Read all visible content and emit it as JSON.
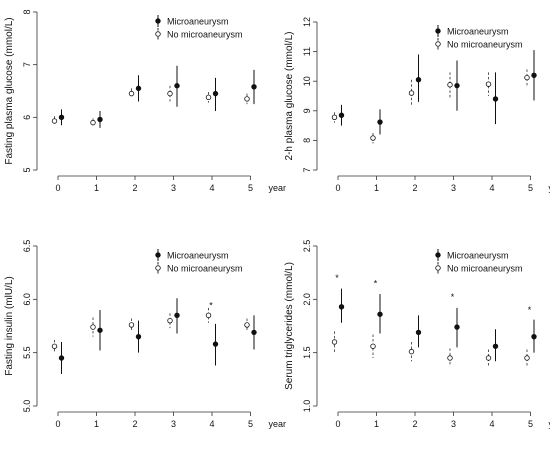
{
  "chart_data": [
    {
      "type": "scatter",
      "ylabel": "Fasting plasma glucose (mmol/L)",
      "xlabel": "year",
      "x_ticks": [
        "0",
        "1",
        "2",
        "3",
        "4",
        "5"
      ],
      "y_ticks": [
        "5",
        "6",
        "7",
        "8"
      ],
      "ylim": [
        5,
        8
      ],
      "legend_placement": "top-right",
      "series": [
        {
          "name": "Microaneurysm",
          "marker": "filled",
          "line": "solid",
          "values": [
            6.0,
            5.96,
            6.55,
            6.6,
            6.45,
            6.58
          ],
          "err_low": [
            5.85,
            5.8,
            6.3,
            6.2,
            6.12,
            6.25
          ],
          "err_high": [
            6.15,
            6.12,
            6.8,
            6.98,
            6.75,
            6.9
          ]
        },
        {
          "name": "No microaneurysm",
          "marker": "open",
          "line": "dashed",
          "values": [
            5.93,
            5.9,
            6.45,
            6.45,
            6.38,
            6.35
          ],
          "err_low": [
            5.85,
            5.82,
            6.38,
            6.3,
            6.28,
            6.25
          ],
          "err_high": [
            6.02,
            5.98,
            6.55,
            6.6,
            6.48,
            6.45
          ]
        }
      ],
      "significance_marks": []
    },
    {
      "type": "scatter",
      "ylabel": "2-h plasma glucose (mmol/L)",
      "xlabel": "year",
      "x_ticks": [
        "0",
        "1",
        "2",
        "3",
        "4",
        "5"
      ],
      "y_ticks": [
        "7",
        "8",
        "9",
        "10",
        "11",
        "12"
      ],
      "ylim": [
        7,
        12
      ],
      "legend_placement": "top-right",
      "series": [
        {
          "name": "Microaneurysm",
          "marker": "filled",
          "line": "solid",
          "values": [
            8.85,
            8.62,
            10.05,
            9.85,
            9.4,
            10.2
          ],
          "err_low": [
            8.5,
            8.2,
            9.3,
            9.0,
            8.55,
            9.35
          ],
          "err_high": [
            9.2,
            9.05,
            10.9,
            10.7,
            10.3,
            11.05
          ]
        },
        {
          "name": "No microaneurysm",
          "marker": "open",
          "line": "dashed",
          "values": [
            8.78,
            8.08,
            9.6,
            9.88,
            9.9,
            10.12
          ],
          "err_low": [
            8.6,
            7.9,
            9.15,
            9.45,
            9.5,
            9.85
          ],
          "err_high": [
            8.95,
            8.25,
            10.05,
            10.3,
            10.3,
            10.4
          ]
        }
      ],
      "significance_marks": []
    },
    {
      "type": "scatter",
      "ylabel": "Fasting insulin (mlU/L)",
      "xlabel": "year",
      "x_ticks": [
        "0",
        "1",
        "2",
        "3",
        "4",
        "5"
      ],
      "y_ticks": [
        "5.0",
        "5.5",
        "6.0",
        "6.5"
      ],
      "ylim": [
        5.0,
        6.5
      ],
      "legend_placement": "top-right",
      "series": [
        {
          "name": "Microaneurysm",
          "marker": "filled",
          "line": "solid",
          "values": [
            5.45,
            5.71,
            5.65,
            5.85,
            5.58,
            5.69
          ],
          "err_low": [
            5.3,
            5.52,
            5.5,
            5.68,
            5.38,
            5.53
          ],
          "err_high": [
            5.6,
            5.9,
            5.8,
            6.01,
            5.77,
            5.85
          ]
        },
        {
          "name": "No microaneurysm",
          "marker": "open",
          "line": "dashed",
          "values": [
            5.56,
            5.74,
            5.76,
            5.8,
            5.85,
            5.76
          ],
          "err_low": [
            5.5,
            5.65,
            5.7,
            5.73,
            5.78,
            5.7
          ],
          "err_high": [
            5.62,
            5.83,
            5.82,
            5.87,
            5.92,
            5.82
          ]
        }
      ],
      "significance_marks": [
        {
          "x_index": 4,
          "y": 5.95,
          "text": "*"
        }
      ]
    },
    {
      "type": "scatter",
      "ylabel": "Serum triglycerides (mmol/L)",
      "xlabel": "year",
      "x_ticks": [
        "0",
        "1",
        "2",
        "3",
        "4",
        "5"
      ],
      "y_ticks": [
        "1.0",
        "1.5",
        "2.0",
        "2.5"
      ],
      "ylim": [
        1.0,
        2.5
      ],
      "legend_placement": "top-right",
      "series": [
        {
          "name": "Microaneurysm",
          "marker": "filled",
          "line": "solid",
          "values": [
            1.93,
            1.86,
            1.69,
            1.74,
            1.56,
            1.65
          ],
          "err_low": [
            1.78,
            1.68,
            1.55,
            1.55,
            1.42,
            1.5
          ],
          "err_high": [
            2.1,
            2.05,
            1.85,
            1.92,
            1.72,
            1.81
          ]
        },
        {
          "name": "No microaneurysm",
          "marker": "open",
          "line": "dashed",
          "values": [
            1.6,
            1.56,
            1.51,
            1.45,
            1.45,
            1.45
          ],
          "err_low": [
            1.5,
            1.45,
            1.42,
            1.37,
            1.37,
            1.37
          ],
          "err_high": [
            1.7,
            1.67,
            1.6,
            1.54,
            1.53,
            1.53
          ]
        }
      ],
      "significance_marks": [
        {
          "x_index": 0,
          "y": 2.21,
          "text": "*"
        },
        {
          "x_index": 1,
          "y": 2.16,
          "text": "*"
        },
        {
          "x_index": 3,
          "y": 2.03,
          "text": "*"
        },
        {
          "x_index": 5,
          "y": 1.91,
          "text": "*"
        }
      ]
    }
  ]
}
